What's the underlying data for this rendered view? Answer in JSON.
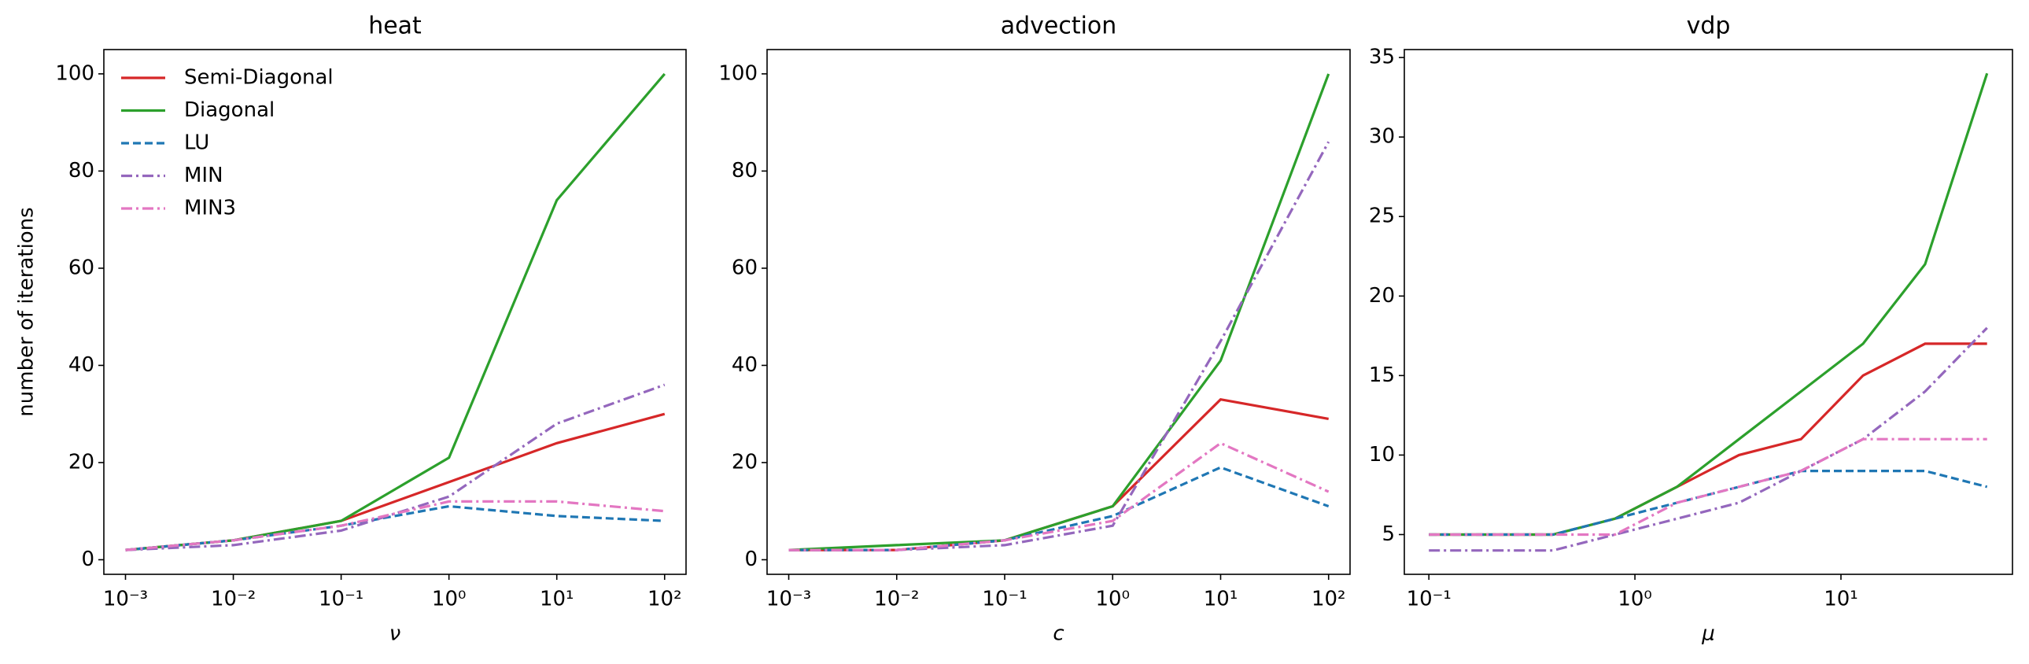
{
  "chart_data": [
    {
      "type": "line",
      "title": "heat",
      "xlabel": "ν",
      "ylabel": "number of iterations",
      "xscale": "log",
      "legend": "upper left",
      "x": [
        0.001,
        0.01,
        0.1,
        1,
        10,
        100
      ],
      "xlim": [
        0.00063,
        158
      ],
      "ylim": [
        -3,
        105
      ],
      "xticks": [
        {
          "value": 0.001,
          "label": "10⁻³"
        },
        {
          "value": 0.01,
          "label": "10⁻²"
        },
        {
          "value": 0.1,
          "label": "10⁻¹"
        },
        {
          "value": 1,
          "label": "10⁰"
        },
        {
          "value": 10,
          "label": "10¹"
        },
        {
          "value": 100,
          "label": "10²"
        }
      ],
      "yticks": [
        0,
        20,
        40,
        60,
        80,
        100
      ],
      "series": [
        {
          "name": "Semi-Diagonal",
          "color": "#d62728",
          "linestyle": "solid",
          "values": [
            2,
            4,
            8,
            16,
            24,
            30
          ]
        },
        {
          "name": "Diagonal",
          "color": "#2ca02c",
          "linestyle": "solid",
          "values": [
            2,
            4,
            8,
            21,
            74,
            100
          ]
        },
        {
          "name": "LU",
          "color": "#1f77b4",
          "linestyle": "dashed",
          "values": [
            2,
            4,
            7,
            11,
            9,
            8
          ]
        },
        {
          "name": "MIN",
          "color": "#9467bd",
          "linestyle": "dashdot",
          "values": [
            2,
            3,
            6,
            13,
            28,
            36
          ]
        },
        {
          "name": "MIN3",
          "color": "#e377c2",
          "linestyle": "dashdot",
          "values": [
            2,
            4,
            7,
            12,
            12,
            10
          ]
        }
      ]
    },
    {
      "type": "line",
      "title": "advection",
      "xlabel": "c",
      "xscale": "log",
      "x": [
        0.001,
        0.01,
        0.1,
        1,
        10,
        100
      ],
      "xlim": [
        0.00063,
        158
      ],
      "ylim": [
        -3,
        105
      ],
      "xticks": [
        {
          "value": 0.001,
          "label": "10⁻³"
        },
        {
          "value": 0.01,
          "label": "10⁻²"
        },
        {
          "value": 0.1,
          "label": "10⁻¹"
        },
        {
          "value": 1,
          "label": "10⁰"
        },
        {
          "value": 10,
          "label": "10¹"
        },
        {
          "value": 100,
          "label": "10²"
        }
      ],
      "yticks": [
        0,
        20,
        40,
        60,
        80,
        100
      ],
      "series": [
        {
          "color": "#d62728",
          "linestyle": "solid",
          "values": [
            2,
            2,
            4,
            11,
            33,
            29
          ]
        },
        {
          "color": "#2ca02c",
          "linestyle": "solid",
          "values": [
            2,
            3,
            4,
            11,
            41,
            100
          ]
        },
        {
          "color": "#1f77b4",
          "linestyle": "dashed",
          "values": [
            2,
            2,
            4,
            9,
            19,
            11
          ]
        },
        {
          "color": "#9467bd",
          "linestyle": "dashdot",
          "values": [
            2,
            2,
            3,
            7,
            45,
            86
          ]
        },
        {
          "color": "#e377c2",
          "linestyle": "dashdot",
          "values": [
            2,
            2,
            4,
            8,
            24,
            14
          ]
        }
      ]
    },
    {
      "type": "line",
      "title": "vdp",
      "xlabel": "μ",
      "xscale": "log",
      "x": [
        0.1,
        0.2,
        0.4,
        0.8,
        1.6,
        3.2,
        6.4,
        12.8,
        25.6,
        51.2
      ],
      "xlim": [
        0.076,
        68
      ],
      "ylim": [
        2.5,
        35.5
      ],
      "xticks": [
        {
          "value": 0.1,
          "label": "10⁻¹"
        },
        {
          "value": 1,
          "label": "10⁰"
        },
        {
          "value": 10,
          "label": "10¹"
        }
      ],
      "yticks": [
        5,
        10,
        15,
        20,
        25,
        30,
        35
      ],
      "series": [
        {
          "color": "#d62728",
          "linestyle": "solid",
          "values": [
            5,
            5,
            5,
            6,
            8,
            10,
            11,
            15,
            17,
            17
          ]
        },
        {
          "color": "#2ca02c",
          "linestyle": "solid",
          "values": [
            5,
            5,
            5,
            6,
            8,
            11,
            14,
            17,
            22,
            34
          ]
        },
        {
          "color": "#1f77b4",
          "linestyle": "dashed",
          "values": [
            5,
            5,
            5,
            6,
            7,
            8,
            9,
            9,
            9,
            8
          ]
        },
        {
          "color": "#9467bd",
          "linestyle": "dashdot",
          "values": [
            4,
            4,
            4,
            5,
            6,
            7,
            9,
            11,
            14,
            18
          ]
        },
        {
          "color": "#e377c2",
          "linestyle": "dashdot",
          "values": [
            5,
            5,
            5,
            5,
            7,
            8,
            9,
            11,
            11,
            11
          ]
        }
      ]
    }
  ]
}
